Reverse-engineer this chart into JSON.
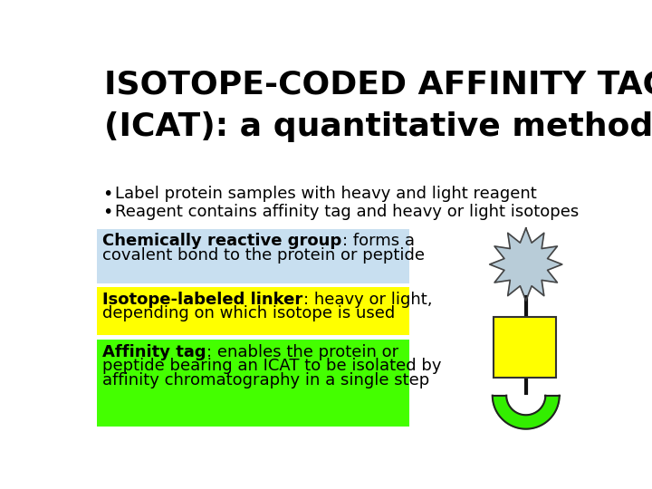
{
  "title_line1": "ISOTOPE-CODED AFFINITY TAG",
  "title_line2": "(ICAT): a quantitative method",
  "bullet1": "Label protein samples with heavy and light reagent",
  "bullet2": "Reagent contains affinity tag and heavy or light isotopes",
  "box1_bold": "Chemically reactive group",
  "box1_rest": ": forms a covalent bond to the protein or peptide",
  "box2_bold": "Isotope-labeled linker",
  "box2_rest": ": heavy or light, depending on which isotope is used",
  "box3_bold": "Affinity tag",
  "box3_rest": ": enables the protein or peptide bearing an ICAT to be isolated by affinity chromatography in a single step",
  "box1_color": "#c8dff0",
  "box2_color": "#ffff00",
  "box3_color": "#44ff00",
  "bg_color": "#ffffff",
  "text_color": "#000000",
  "diagram_star_color": "#b8ccd8",
  "diagram_rect_color": "#ffff00",
  "diagram_arc_color": "#33ee00"
}
